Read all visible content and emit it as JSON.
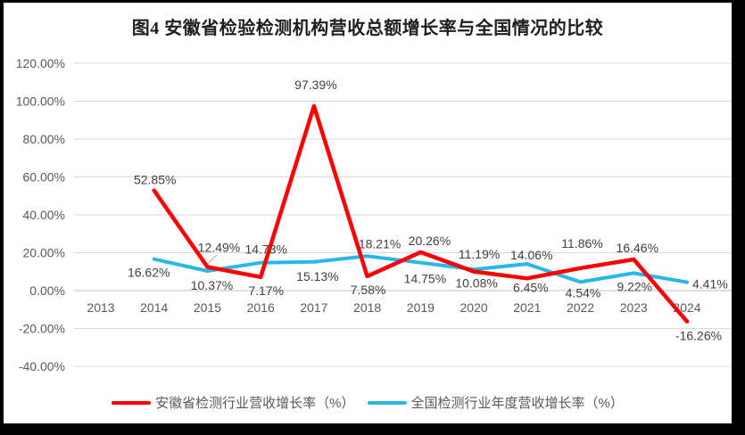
{
  "title": "图4 安徽省检验检测机构营收总额增长率与全国情况的比较",
  "colors": {
    "anhui_series": "#FF0000",
    "national_series": "#29B6EA",
    "gridline": "#D9D9D9",
    "zero_axis": "#BFBFBF",
    "axis_text": "#595959",
    "data_label_text": "#404040",
    "leader_line": "#A6A6A6",
    "background": "#FFFFFF",
    "frame": "#000000"
  },
  "chart_data": {
    "type": "line",
    "title": "图4 安徽省检验检测机构营收总额增长率与全国情况的比较",
    "xlabel": "",
    "ylabel": "",
    "grid": true,
    "legend_position": "bottom",
    "categories": [
      "2013",
      "2014",
      "2015",
      "2016",
      "2017",
      "2018",
      "2019",
      "2020",
      "2021",
      "2022",
      "2023",
      "2024"
    ],
    "y_axis": {
      "min": -40,
      "max": 120,
      "step": 20,
      "tick_values": [
        120,
        100,
        80,
        60,
        40,
        20,
        0,
        -20,
        -40
      ],
      "ticks": [
        "120.00%",
        "100.00%",
        "80.00%",
        "60.00%",
        "40.00%",
        "20.00%",
        "0.00%",
        "-20.00%",
        "-40.00%"
      ]
    },
    "series": [
      {
        "name": "安徽省检测行业营收增长率（%）",
        "color": "#FF0000",
        "values": [
          null,
          52.85,
          12.49,
          7.17,
          97.39,
          7.58,
          20.26,
          10.08,
          6.45,
          11.86,
          16.46,
          -16.26
        ],
        "labels": [
          "",
          "52.85%",
          "12.49%",
          "7.17%",
          "97.39%",
          "7.58%",
          "20.26%",
          "10.08%",
          "6.45%",
          "11.86%",
          "16.46%",
          "-16.26%"
        ]
      },
      {
        "name": "全国检测行业年度营收增长率（%）",
        "color": "#29B6EA",
        "values": [
          null,
          16.62,
          10.37,
          14.73,
          15.13,
          18.21,
          14.75,
          11.19,
          14.06,
          4.54,
          9.22,
          4.41
        ],
        "labels": [
          "",
          "16.62%",
          "10.37%",
          "14.73%",
          "15.13%",
          "18.21%",
          "14.75%",
          "11.19%",
          "14.06%",
          "4.54%",
          "9.22%",
          "4.41%"
        ]
      }
    ]
  }
}
